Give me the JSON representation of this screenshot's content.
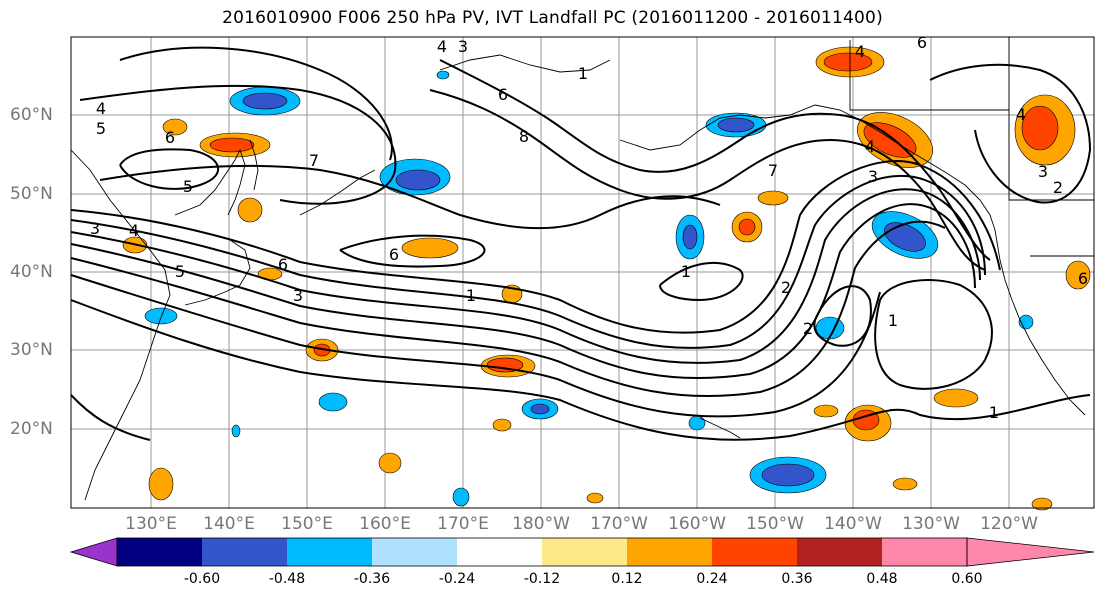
{
  "title": "2016010900 F006 250 hPa PV, IVT Landfall PC (2016011200 - 2016011400)",
  "latitude_labels": [
    "60°N",
    "50°N",
    "40°N",
    "30°N",
    "20°N"
  ],
  "longitude_labels": [
    "130°E",
    "140°E",
    "150°E",
    "160°E",
    "170°E",
    "180°W",
    "170°W",
    "160°W",
    "150°W",
    "140°W",
    "130°W",
    "120°W"
  ],
  "colorbar": {
    "colors": [
      "#9933cc",
      "#000080",
      "#3355cc",
      "#00bbff",
      "#b0e2ff",
      "#ffffff",
      "#ffe88a",
      "#ffa500",
      "#ff4400",
      "#b22222",
      "#ff88aa"
    ],
    "tick_labels": [
      "-0.60",
      "-0.48",
      "-0.36",
      "-0.24",
      "-0.12",
      "0.12",
      "0.24",
      "0.36",
      "0.48",
      "0.60"
    ]
  },
  "contour_labels": {
    "pv_values": [
      "4",
      "3",
      "4",
      "5",
      "6",
      "7",
      "6",
      "8",
      "5",
      "4",
      "3",
      "4",
      "5",
      "6",
      "3",
      "6",
      "1",
      "1",
      "2",
      "2",
      "1",
      "1",
      "7",
      "3",
      "4",
      "3",
      "2",
      "4",
      "1",
      "6",
      "6"
    ]
  }
}
